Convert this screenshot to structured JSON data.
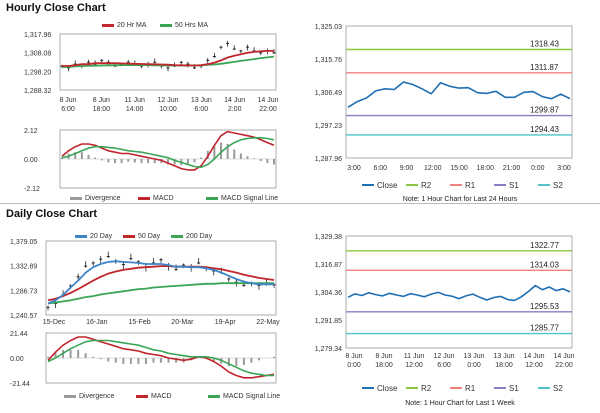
{
  "hourly": {
    "title": "Hourly Close Chart",
    "price_panel": {
      "legend": [
        "20 Hr MA",
        "50 Hrs MA"
      ],
      "yticks": [
        "1,317.96",
        "1,308.08",
        "1,298.20",
        "1,288.32"
      ],
      "xticks": [
        "8 Jun 6:00",
        "8 Jun 18:00",
        "11 Jun 14:00",
        "12 Jun 10:00",
        "13 Jun 6:00",
        "14 Jun 2:00",
        "14 Jun 22:00"
      ],
      "ylim": [
        1288.32,
        1317.96
      ],
      "close": [
        1301,
        1300,
        1302,
        1301,
        1303,
        1302,
        1304,
        1303,
        1301,
        1302,
        1303,
        1302,
        1301,
        1302,
        1303,
        1301,
        1300,
        1301,
        1303,
        1302,
        1300,
        1301,
        1304,
        1306,
        1311,
        1313,
        1310,
        1309,
        1311,
        1309,
        1308,
        1309,
        1308
      ],
      "ma20": [
        1301,
        1301,
        1301.5,
        1302,
        1302,
        1302.5,
        1302.5,
        1302.5,
        1302.5,
        1302.4,
        1302.3,
        1302.2,
        1302.1,
        1302,
        1301.9,
        1301.8,
        1301.7,
        1301.5,
        1301.4,
        1301.3,
        1301.3,
        1301.5,
        1302,
        1302.8,
        1304,
        1305.5,
        1306.5,
        1307.2,
        1308,
        1308.5,
        1308.8,
        1309,
        1309
      ],
      "ma50": [
        1300.5,
        1300.6,
        1300.8,
        1301,
        1301.1,
        1301.2,
        1301.3,
        1301.4,
        1301.4,
        1301.5,
        1301.5,
        1301.5,
        1301.5,
        1301.5,
        1301.4,
        1301.4,
        1301.3,
        1301.3,
        1301.3,
        1301.3,
        1301.3,
        1301.4,
        1301.6,
        1301.8,
        1302.2,
        1302.7,
        1303.2,
        1303.7,
        1304.2,
        1304.7,
        1305.2,
        1305.6,
        1306
      ]
    },
    "macd_panel": {
      "legend": [
        "Divergence",
        "MACD",
        "MACD Signal Line"
      ],
      "yticks": [
        "2.12",
        "0.00",
        "-2.12"
      ],
      "ylim": [
        -2.12,
        2.12
      ],
      "macd": [
        0.2,
        0.6,
        0.9,
        1.1,
        1.1,
        1.0,
        0.8,
        0.6,
        0.5,
        0.4,
        0.4,
        0.3,
        0.2,
        0.1,
        0.0,
        -0.1,
        -0.3,
        -0.5,
        -0.7,
        -0.8,
        -0.8,
        -0.5,
        0.2,
        1.0,
        1.7,
        2.0,
        1.9,
        1.8,
        1.7,
        1.6,
        1.4,
        1.2,
        1.0
      ],
      "signal": [
        0.1,
        0.2,
        0.4,
        0.6,
        0.8,
        0.9,
        0.9,
        0.85,
        0.8,
        0.7,
        0.6,
        0.55,
        0.5,
        0.4,
        0.3,
        0.2,
        0.1,
        -0.1,
        -0.25,
        -0.4,
        -0.55,
        -0.6,
        -0.4,
        0.0,
        0.5,
        0.9,
        1.2,
        1.4,
        1.5,
        1.55,
        1.55,
        1.5,
        1.4
      ]
    },
    "pivot_panel": {
      "yticks": [
        "1,325.03",
        "1,315.76",
        "1,306.49",
        "1,297.23",
        "1,287.96"
      ],
      "xticks": [
        "3:00",
        "6:00",
        "9:00",
        "12:00",
        "15:00",
        "18:00",
        "21:00",
        "0:00",
        "3:00"
      ],
      "ylim": [
        1287.96,
        1325.03
      ],
      "levels": [
        {
          "name": "R2",
          "value": 1318.43,
          "label": "1318.43",
          "color": "#8dc63f"
        },
        {
          "name": "R1",
          "value": 1311.87,
          "label": "1311.87",
          "color": "#f08080"
        },
        {
          "name": "S1",
          "value": 1299.87,
          "label": "1299.87",
          "color": "#8e7cc3"
        },
        {
          "name": "S2",
          "value": 1294.43,
          "label": "1294.43",
          "color": "#4fc3c9"
        }
      ],
      "close": [
        1302.2,
        1303.8,
        1304.8,
        1306.8,
        1307.4,
        1307.2,
        1309.3,
        1308.6,
        1307.4,
        1306.0,
        1309.1,
        1308.1,
        1307.6,
        1307.7,
        1306.3,
        1306.1,
        1306.7,
        1305.0,
        1305.0,
        1306.4,
        1306.6,
        1305.2,
        1304.6,
        1305.9,
        1304.6
      ],
      "legend": [
        "Close",
        "R2",
        "R1",
        "S1",
        "S2"
      ],
      "note": "Note: 1 Hour Chart for Last 24 Hours"
    }
  },
  "daily": {
    "title": "Daily Close Chart",
    "price_panel": {
      "legend": [
        "20 Day",
        "50 Day",
        "200 Day"
      ],
      "yticks": [
        "1,379.05",
        "1,332.89",
        "1,286.73",
        "1,240.57"
      ],
      "xticks": [
        "15-Dec",
        "16-Jan",
        "15-Feb",
        "20-Mar",
        "19-Apr",
        "22-May"
      ],
      "ylim": [
        1240.57,
        1379.05
      ],
      "close": [
        1255,
        1262,
        1278,
        1295,
        1312,
        1332,
        1338,
        1345,
        1350,
        1342,
        1335,
        1346,
        1340,
        1330,
        1338,
        1344,
        1332,
        1326,
        1334,
        1330,
        1338,
        1328,
        1323,
        1320,
        1308,
        1302,
        1296,
        1300,
        1296,
        1298,
        1297
      ],
      "ma20": [
        1262,
        1268,
        1278,
        1292,
        1305,
        1320,
        1330,
        1336,
        1340,
        1341,
        1340,
        1339,
        1338,
        1336,
        1336,
        1336,
        1334,
        1331,
        1331,
        1330,
        1330,
        1328,
        1325,
        1320,
        1314,
        1308,
        1303,
        1300,
        1298,
        1298,
        1298
      ],
      "ma50": [
        1268,
        1271,
        1276,
        1282,
        1289,
        1297,
        1305,
        1312,
        1318,
        1322,
        1325,
        1327,
        1329,
        1330,
        1331,
        1332,
        1332,
        1331,
        1331,
        1331,
        1331,
        1330,
        1328,
        1326,
        1323,
        1320,
        1316,
        1313,
        1310,
        1308,
        1306
      ],
      "ma200": [
        1262,
        1264,
        1266,
        1268,
        1271,
        1274,
        1276,
        1279,
        1281,
        1283,
        1285,
        1287,
        1289,
        1290,
        1292,
        1293,
        1294,
        1295,
        1296,
        1297,
        1298,
        1299,
        1299,
        1300,
        1300,
        1300,
        1300,
        1300,
        1300,
        1300,
        1300
      ]
    },
    "macd_panel": {
      "legend": [
        "Divergence",
        "MACD",
        "MACD Signal Line"
      ],
      "yticks": [
        "21.44",
        "0.00",
        "-21.44"
      ],
      "ylim": [
        -21.44,
        21.44
      ],
      "macd": [
        -2,
        5,
        11,
        15,
        18,
        18,
        16,
        14,
        12,
        10,
        8,
        7,
        6,
        4,
        3,
        2,
        0,
        -1,
        -2,
        -1,
        1,
        0,
        -3,
        -7,
        -12,
        -15,
        -17,
        -17,
        -16,
        -15,
        -14
      ],
      "signal": [
        -3,
        0,
        4,
        8,
        11,
        14,
        15,
        15,
        15,
        14,
        13,
        12,
        11,
        9,
        7,
        6,
        4,
        3,
        2,
        1,
        1,
        1,
        0,
        -2,
        -5,
        -8,
        -11,
        -13,
        -14,
        -15,
        -15
      ]
    },
    "pivot_panel": {
      "yticks": [
        "1,329.38",
        "1,316.87",
        "1,304.36",
        "1,291.85",
        "1,279.34"
      ],
      "xticks": [
        "8 Jun 0:00",
        "8 Jun 18:00",
        "11 Jun 12:00",
        "12 Jun 6:00",
        "13 Jun 0:00",
        "13 Jun 18:00",
        "14 Jun 12:00",
        "14 Jun 22:00"
      ],
      "ylim": [
        1279.34,
        1329.38
      ],
      "levels": [
        {
          "name": "R2",
          "value": 1322.77,
          "label": "1322.77",
          "color": "#8dc63f"
        },
        {
          "name": "R1",
          "value": 1314.03,
          "label": "1314.03",
          "color": "#f08080"
        },
        {
          "name": "S1",
          "value": 1295.53,
          "label": "1295.53",
          "color": "#8e7cc3"
        },
        {
          "name": "S2",
          "value": 1285.77,
          "label": "1285.77",
          "color": "#4fc3c9"
        }
      ],
      "close": [
        1302.0,
        1303.5,
        1302.8,
        1304.0,
        1303.2,
        1302.6,
        1303.8,
        1303.0,
        1302.4,
        1303.6,
        1303.0,
        1302.2,
        1303.4,
        1304.2,
        1303.0,
        1302.5,
        1301.4,
        1302.6,
        1303.4,
        1302.0,
        1300.8,
        1301.9,
        1302.4,
        1301.0,
        1300.6,
        1302.2,
        1304.6,
        1307.2,
        1305.4,
        1306.6,
        1305.0,
        1305.8,
        1304.4
      ],
      "legend": [
        "Close",
        "R2",
        "R1",
        "S1",
        "S2"
      ],
      "note": "Note: 1 Hour Chart for Last 1 Week"
    }
  },
  "colors": {
    "close": "#1f6fb2",
    "ma_red": "#c0262c",
    "ma_green": "#3aa655",
    "ma_blue": "#3d85c6",
    "divergence": "#9a9a9a",
    "candle": "#222222"
  }
}
